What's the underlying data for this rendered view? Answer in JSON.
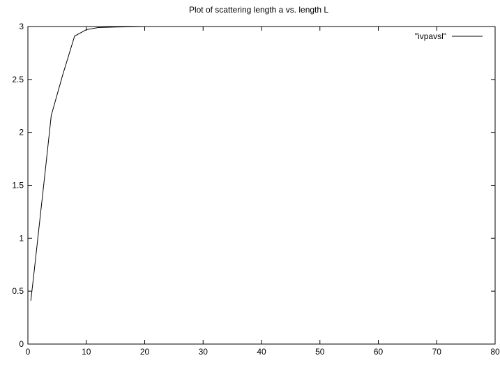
{
  "chart_data": {
    "type": "line",
    "title": "Plot of scattering length a vs. length L",
    "xlabel": "",
    "ylabel": "",
    "xlim": [
      0,
      80
    ],
    "ylim": [
      0,
      3
    ],
    "xticks": [
      "0",
      "10",
      "20",
      "30",
      "40",
      "50",
      "60",
      "70",
      "80"
    ],
    "yticks": [
      "0",
      "0.5",
      "1",
      "1.5",
      "2",
      "2.5",
      "3"
    ],
    "grid": false,
    "legend_position": "top-right",
    "series": [
      {
        "name": "\"ivpavsl\"",
        "color": "#000000",
        "x": [
          0.5,
          1,
          2,
          3,
          4,
          6,
          8,
          10,
          12,
          15,
          20,
          30,
          40,
          50,
          60,
          70,
          80
        ],
        "y": [
          0.41,
          0.65,
          1.15,
          1.65,
          2.16,
          2.55,
          2.91,
          2.97,
          2.99,
          2.995,
          3.0,
          3.0,
          3.0,
          3.0,
          3.0,
          3.0,
          3.0
        ]
      }
    ]
  }
}
